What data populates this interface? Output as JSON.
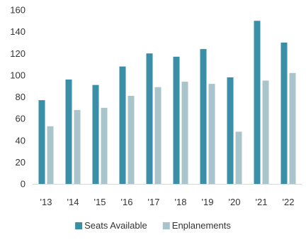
{
  "chart_data": {
    "type": "bar",
    "title": "",
    "xlabel": "",
    "ylabel": "",
    "categories": [
      "'13",
      "'14",
      "'15",
      "'16",
      "'17",
      "'18",
      "'19",
      "'20",
      "'21",
      "'22"
    ],
    "series": [
      {
        "name": "Seats Available",
        "color": "#3a8ea6",
        "values": [
          77,
          96,
          91,
          108,
          120,
          117,
          124,
          98,
          150,
          130
        ]
      },
      {
        "name": "Enplanements",
        "color": "#a9c4ca",
        "values": [
          53,
          68,
          70,
          81,
          89,
          94,
          92,
          48,
          95,
          102
        ]
      }
    ],
    "ylim": [
      0,
      160
    ],
    "yticks": [
      0,
      20,
      40,
      60,
      80,
      100,
      120,
      140,
      160
    ],
    "grid": false,
    "legend": "bottom-center"
  }
}
